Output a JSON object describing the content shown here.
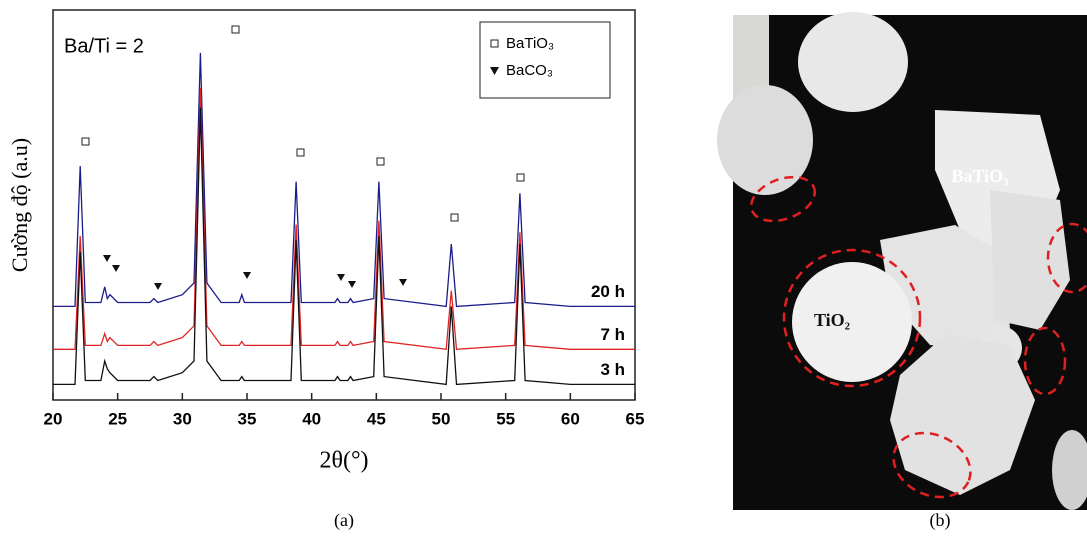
{
  "chart_data": {
    "type": "line",
    "annotation": "Ba/Ti = 2",
    "x_label": "2θ(°)",
    "y_label": "Cường độ (a.u)",
    "panel_label": "(a)",
    "markers": [
      {
        "name": "BaTiO₃"
      },
      {
        "name": "BaCO₃"
      }
    ],
    "xlim": [
      20,
      65
    ],
    "xticks": [
      20,
      25,
      30,
      35,
      40,
      45,
      50,
      55,
      60,
      65
    ],
    "ylim": [
      0,
      100
    ],
    "x": [
      20,
      21.7,
      22.1,
      22.5,
      23.7,
      24.0,
      24.2,
      24.4,
      25,
      27.5,
      27.8,
      28.1,
      30,
      30.9,
      31.4,
      31.9,
      33,
      34.4,
      34.6,
      34.8,
      38.4,
      38.8,
      39.2,
      41.8,
      42.0,
      42.2,
      42.8,
      43.0,
      43.2,
      44.8,
      45.2,
      45.6,
      50.4,
      50.8,
      51.2,
      55.7,
      56.1,
      56.5,
      60,
      65
    ],
    "series": [
      {
        "name": "20 h",
        "color": "#1c1c8a",
        "values": [
          24,
          24,
          60,
          25,
          25,
          29,
          26,
          27,
          25,
          25,
          26,
          25,
          27,
          30,
          89,
          30,
          25,
          25,
          27,
          25,
          25,
          56,
          25,
          25,
          26,
          25,
          25,
          26,
          25,
          26,
          56,
          26,
          24,
          40,
          24,
          25,
          53,
          25,
          24,
          24
        ]
      },
      {
        "name": "7 h",
        "color": "#e02424",
        "values": [
          13,
          13,
          42,
          14,
          14,
          17,
          15,
          16,
          14,
          14,
          15,
          14,
          16,
          19,
          80,
          19,
          14,
          14,
          15,
          14,
          14,
          45,
          14,
          14,
          15,
          14,
          14,
          15,
          14,
          15,
          46,
          15,
          13,
          28,
          13,
          14,
          43,
          14,
          13,
          13
        ]
      },
      {
        "name": "3 h",
        "color": "#111111",
        "values": [
          4,
          4,
          38,
          5,
          5,
          10,
          8,
          7,
          5,
          5,
          6,
          5,
          7,
          10,
          75,
          10,
          5,
          5,
          6,
          5,
          5,
          41,
          5,
          5,
          6,
          5,
          5,
          6,
          5,
          6,
          42,
          6,
          4,
          24,
          4,
          5,
          40,
          5,
          4,
          4
        ]
      }
    ]
  },
  "image": {
    "panel_label": "(b)",
    "labels": [
      "BaTiO₃",
      "TiO₂"
    ]
  }
}
